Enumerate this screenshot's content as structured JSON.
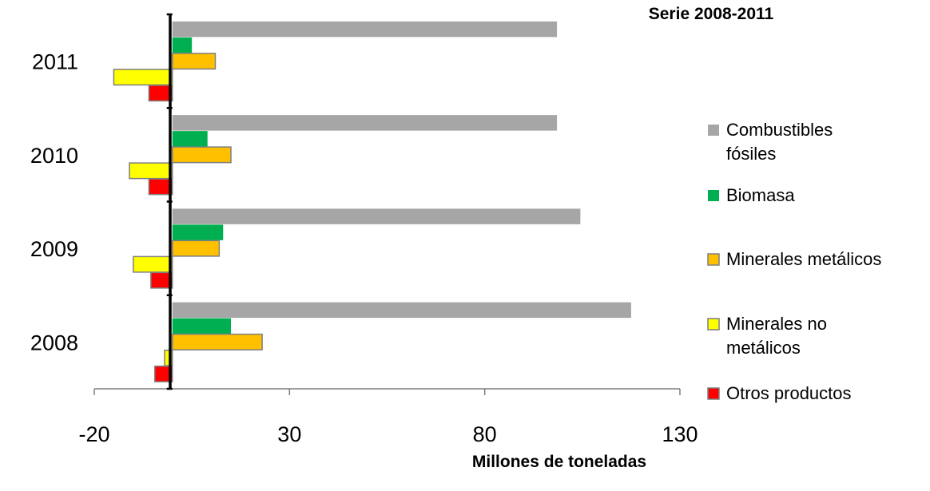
{
  "chart_data": {
    "type": "bar",
    "orientation": "horizontal",
    "title": "Serie 2008-2011",
    "xlabel": "Millones de toneladas",
    "ylabel": "",
    "xlim": [
      -20,
      130
    ],
    "xticks": [
      "-20",
      "30",
      "80",
      "130"
    ],
    "categories": [
      "2008",
      "2009",
      "2010",
      "2011"
    ],
    "series": [
      {
        "name": "Combustibles fósiles",
        "color": "#a6a6a6",
        "values": [
          117.5,
          104.5,
          98.5,
          98.5
        ]
      },
      {
        "name": "Biomasa",
        "color": "#00b050",
        "values": [
          15,
          13,
          9,
          5
        ]
      },
      {
        "name": "Minerales metálicos",
        "color": "#ffc000",
        "values": [
          23,
          12,
          15,
          11
        ]
      },
      {
        "name": "Minerales no metálicos",
        "color": "#ffff00",
        "values": [
          -2,
          -10,
          -11,
          -15
        ]
      },
      {
        "name": "Otros productos",
        "color": "#ff0000",
        "values": [
          -4.5,
          -5.5,
          -6,
          -6
        ]
      }
    ],
    "legend": "right",
    "grid": false
  }
}
